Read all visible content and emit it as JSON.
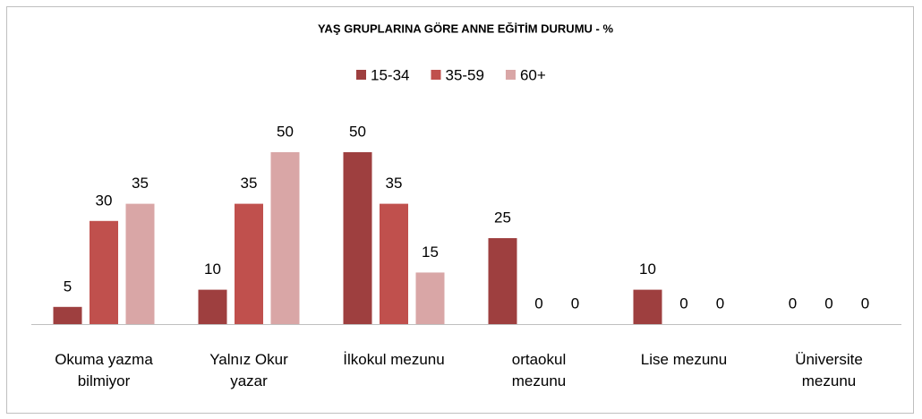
{
  "chart_data": {
    "type": "bar",
    "title": "YAŞ GRUPLARINA GÖRE ANNE EĞİTİM DURUMU - %",
    "categories": [
      "Okuma yazma\nbilmiyor",
      "Yalnız Okur\nyazar",
      "İlkokul mezunu",
      "ortaokul\nmezunu",
      "Lise mezunu",
      "Üniversite\nmezunu"
    ],
    "series": [
      {
        "name": "15-34",
        "color": "#9e3f3f",
        "values": [
          5,
          10,
          50,
          25,
          10,
          0
        ]
      },
      {
        "name": "35-59",
        "color": "#c0504d",
        "values": [
          30,
          35,
          35,
          0,
          0,
          0
        ]
      },
      {
        "name": "60+",
        "color": "#d9a6a6",
        "values": [
          35,
          50,
          15,
          0,
          0,
          0
        ]
      }
    ],
    "legend": "top"
  }
}
